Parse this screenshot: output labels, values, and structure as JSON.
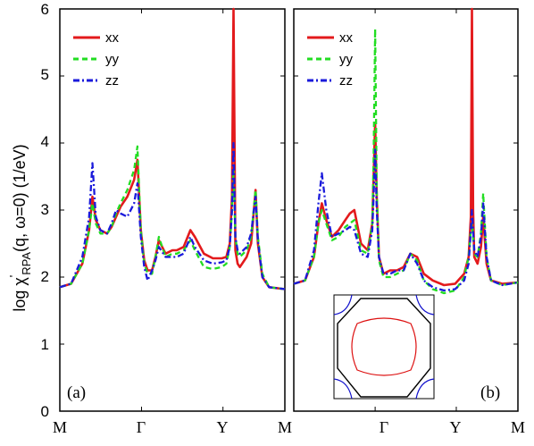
{
  "chart_data": {
    "type": "line",
    "ylabel_main": "log χ",
    "ylabel_sub": "RPA",
    "ylabel_prime": "'",
    "ylabel_tail": "(q, ω=0) (1/eV)",
    "ylim": [
      0,
      6
    ],
    "yticks": [
      "0",
      "1",
      "2",
      "3",
      "4",
      "5",
      "6"
    ],
    "xticks": [
      "M",
      "Γ",
      "Y",
      "M"
    ],
    "xtick_positions": [
      0,
      0.363,
      0.725,
      1
    ],
    "legend": [
      {
        "label": "xx",
        "color": "#e31a1c",
        "dash": "solid"
      },
      {
        "label": "yy",
        "color": "#22dd22",
        "dash": "dashed"
      },
      {
        "label": "zz",
        "color": "#1a1adb",
        "dash": "dashdot"
      }
    ],
    "panels": [
      {
        "label": "(a)",
        "series": [
          {
            "name": "xx",
            "color": "#e31a1c",
            "x": [
              0,
              0.05,
              0.1,
              0.13,
              0.145,
              0.16,
              0.18,
              0.21,
              0.23,
              0.25,
              0.27,
              0.3,
              0.33,
              0.345,
              0.36,
              0.375,
              0.39,
              0.41,
              0.425,
              0.44,
              0.47,
              0.5,
              0.52,
              0.55,
              0.58,
              0.6,
              0.64,
              0.68,
              0.72,
              0.74,
              0.755,
              0.765,
              0.772,
              0.78,
              0.79,
              0.8,
              0.83,
              0.85,
              0.87,
              0.88,
              0.9,
              0.93,
              1.0
            ],
            "y": [
              1.85,
              1.9,
              2.2,
              2.7,
              3.2,
              2.85,
              2.7,
              2.65,
              2.75,
              2.9,
              3.05,
              3.2,
              3.45,
              3.75,
              2.7,
              2.25,
              2.1,
              2.1,
              2.3,
              2.55,
              2.35,
              2.4,
              2.4,
              2.45,
              2.7,
              2.6,
              2.35,
              2.28,
              2.28,
              2.3,
              2.5,
              3.2,
              6.0,
              2.4,
              2.2,
              2.15,
              2.3,
              2.5,
              3.3,
              2.5,
              2.0,
              1.85,
              1.82
            ]
          },
          {
            "name": "yy",
            "color": "#22dd22",
            "x": [
              0,
              0.05,
              0.1,
              0.13,
              0.145,
              0.16,
              0.18,
              0.21,
              0.23,
              0.25,
              0.27,
              0.3,
              0.33,
              0.345,
              0.36,
              0.375,
              0.39,
              0.41,
              0.425,
              0.44,
              0.47,
              0.5,
              0.52,
              0.55,
              0.58,
              0.6,
              0.64,
              0.68,
              0.72,
              0.74,
              0.755,
              0.765,
              0.772,
              0.78,
              0.79,
              0.8,
              0.83,
              0.85,
              0.87,
              0.88,
              0.9,
              0.93,
              1.0
            ],
            "y": [
              1.85,
              1.9,
              2.2,
              2.7,
              3.1,
              2.8,
              2.65,
              2.65,
              2.75,
              2.95,
              3.1,
              3.3,
              3.6,
              3.95,
              2.7,
              2.2,
              2.05,
              2.05,
              2.3,
              2.6,
              2.3,
              2.35,
              2.35,
              2.4,
              2.55,
              2.4,
              2.15,
              2.12,
              2.15,
              2.2,
              2.45,
              3.0,
              3.6,
              2.6,
              2.35,
              2.3,
              2.4,
              2.6,
              3.3,
              2.6,
              2.05,
              1.85,
              1.82
            ]
          },
          {
            "name": "zz",
            "color": "#1a1adb",
            "x": [
              0,
              0.05,
              0.1,
              0.13,
              0.145,
              0.16,
              0.18,
              0.21,
              0.23,
              0.25,
              0.27,
              0.3,
              0.33,
              0.345,
              0.36,
              0.375,
              0.39,
              0.41,
              0.425,
              0.44,
              0.47,
              0.5,
              0.52,
              0.55,
              0.58,
              0.6,
              0.64,
              0.68,
              0.72,
              0.74,
              0.755,
              0.765,
              0.772,
              0.78,
              0.79,
              0.8,
              0.83,
              0.85,
              0.87,
              0.88,
              0.9,
              0.93,
              1.0
            ],
            "y": [
              1.85,
              1.9,
              2.3,
              2.9,
              3.7,
              2.9,
              2.7,
              2.65,
              2.8,
              3.0,
              2.95,
              2.9,
              3.1,
              3.4,
              2.6,
              2.15,
              1.95,
              2.1,
              2.25,
              2.45,
              2.3,
              2.3,
              2.3,
              2.35,
              2.6,
              2.45,
              2.25,
              2.2,
              2.22,
              2.25,
              2.45,
              3.0,
              4.0,
              2.6,
              2.4,
              2.35,
              2.45,
              2.65,
              3.2,
              2.55,
              2.0,
              1.85,
              1.82
            ]
          }
        ]
      },
      {
        "label": "(b)",
        "series": [
          {
            "name": "xx",
            "color": "#e31a1c",
            "x": [
              0,
              0.05,
              0.09,
              0.11,
              0.125,
              0.145,
              0.17,
              0.2,
              0.23,
              0.25,
              0.27,
              0.3,
              0.33,
              0.35,
              0.356,
              0.363,
              0.37,
              0.38,
              0.4,
              0.43,
              0.46,
              0.49,
              0.52,
              0.55,
              0.58,
              0.62,
              0.67,
              0.72,
              0.76,
              0.78,
              0.79,
              0.795,
              0.8,
              0.805,
              0.82,
              0.835,
              0.845,
              0.86,
              0.88,
              0.93,
              1.0
            ],
            "y": [
              1.9,
              1.95,
              2.3,
              2.8,
              3.1,
              2.85,
              2.6,
              2.7,
              2.85,
              2.95,
              3.0,
              2.5,
              2.4,
              2.8,
              3.5,
              4.3,
              3.2,
              2.3,
              2.05,
              2.1,
              2.1,
              2.15,
              2.35,
              2.3,
              2.05,
              1.95,
              1.88,
              1.9,
              2.05,
              2.3,
              2.9,
              6.0,
              3.0,
              2.3,
              2.2,
              2.45,
              2.9,
              2.2,
              1.95,
              1.9,
              1.92
            ]
          },
          {
            "name": "yy",
            "color": "#22dd22",
            "x": [
              0,
              0.05,
              0.09,
              0.11,
              0.125,
              0.145,
              0.17,
              0.2,
              0.23,
              0.25,
              0.27,
              0.3,
              0.33,
              0.35,
              0.356,
              0.363,
              0.37,
              0.38,
              0.4,
              0.43,
              0.46,
              0.49,
              0.52,
              0.55,
              0.58,
              0.62,
              0.67,
              0.72,
              0.76,
              0.78,
              0.79,
              0.795,
              0.8,
              0.805,
              0.82,
              0.835,
              0.845,
              0.86,
              0.88,
              0.93,
              1.0
            ],
            "y": [
              1.9,
              1.95,
              2.3,
              2.8,
              3.0,
              2.8,
              2.55,
              2.6,
              2.75,
              2.8,
              2.85,
              2.4,
              2.35,
              2.8,
              3.8,
              5.7,
              3.3,
              2.25,
              2.0,
              2.0,
              2.05,
              2.1,
              2.35,
              2.25,
              1.95,
              1.82,
              1.76,
              1.8,
              2.0,
              2.3,
              2.7,
              2.8,
              2.6,
              2.35,
              2.3,
              2.65,
              3.25,
              2.3,
              1.95,
              1.88,
              1.92
            ]
          },
          {
            "name": "zz",
            "color": "#1a1adb",
            "x": [
              0,
              0.05,
              0.09,
              0.11,
              0.125,
              0.145,
              0.17,
              0.2,
              0.23,
              0.25,
              0.27,
              0.3,
              0.33,
              0.35,
              0.356,
              0.363,
              0.37,
              0.38,
              0.4,
              0.43,
              0.46,
              0.49,
              0.52,
              0.55,
              0.58,
              0.62,
              0.67,
              0.72,
              0.76,
              0.78,
              0.79,
              0.795,
              0.8,
              0.805,
              0.82,
              0.835,
              0.845,
              0.86,
              0.88,
              0.93,
              1.0
            ],
            "y": [
              1.9,
              1.95,
              2.4,
              3.1,
              3.55,
              3.0,
              2.6,
              2.65,
              2.7,
              2.75,
              2.7,
              2.35,
              2.3,
              2.7,
              3.2,
              3.9,
              3.0,
              2.3,
              2.05,
              2.05,
              2.1,
              2.1,
              2.35,
              2.2,
              1.95,
              1.85,
              1.8,
              1.82,
              1.95,
              2.2,
              2.7,
              3.0,
              2.7,
              2.4,
              2.3,
              2.6,
              3.1,
              2.3,
              1.95,
              1.88,
              1.92
            ]
          }
        ]
      }
    ]
  }
}
